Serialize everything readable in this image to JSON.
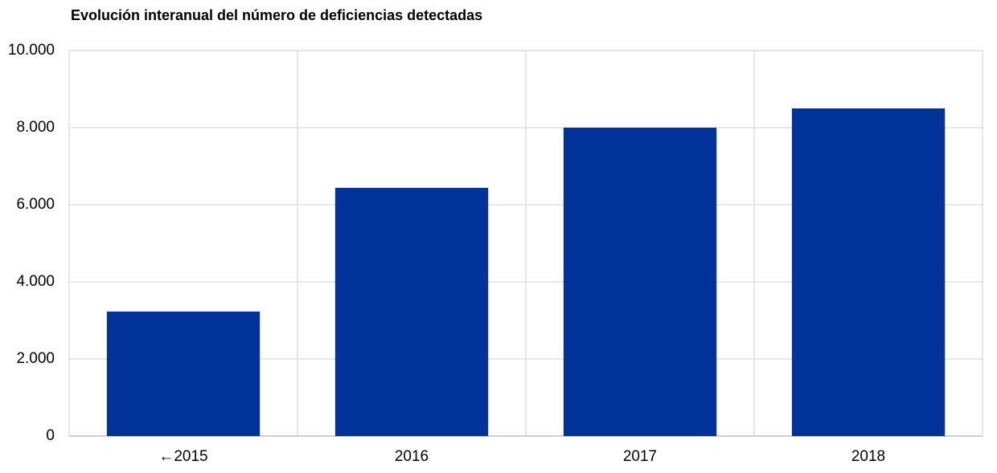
{
  "chart_data": {
    "type": "bar",
    "title": "Evolución interanual del número de deficiencias detectadas",
    "categories": [
      "←2015",
      "2016",
      "2017",
      "2018"
    ],
    "values": [
      3230,
      6440,
      8000,
      8500
    ],
    "color": "#003299",
    "ylim": [
      0,
      10000
    ],
    "yticks": [
      0,
      {
        "value": 2000,
        "label": "2.000"
      },
      {
        "value": 4000,
        "label": "4.000"
      },
      {
        "value": 6000,
        "label": "6.000"
      },
      {
        "value": 8000,
        "label": "8.000"
      },
      {
        "value": 10000,
        "label": "10.000"
      }
    ],
    "grid": true
  }
}
